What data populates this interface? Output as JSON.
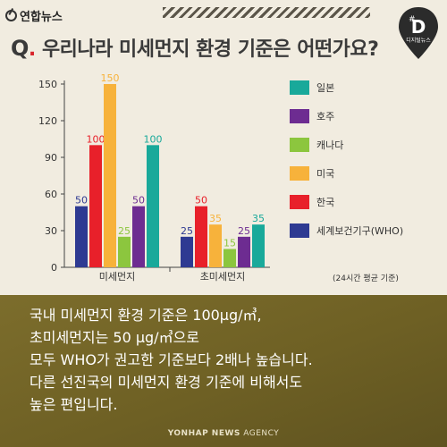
{
  "brand": {
    "logo_text": "연합뉴스",
    "badge_letter": "D",
    "badge_sub": "디지털뉴스"
  },
  "question": {
    "prefix": "Q",
    "dot": ".",
    "text": "우리나라 미세먼지 환경 기준은 어떤가요?"
  },
  "chart_data": {
    "type": "bar",
    "title": "우리나라 미세먼지 환경 기준은 어떤가요?",
    "categories": [
      "미세먼지",
      "초미세먼지"
    ],
    "series": [
      {
        "name": "세계보건기구(WHO)",
        "color": "#2e3a92",
        "values": [
          50,
          25
        ]
      },
      {
        "name": "한국",
        "color": "#e8202a",
        "values": [
          100,
          50
        ]
      },
      {
        "name": "미국",
        "color": "#f7b23b",
        "values": [
          150,
          35
        ]
      },
      {
        "name": "캐나다",
        "color": "#8cc63e",
        "values": [
          25,
          15
        ]
      },
      {
        "name": "호주",
        "color": "#6d2c91",
        "values": [
          50,
          25
        ]
      },
      {
        "name": "일본",
        "color": "#19a99a",
        "values": [
          100,
          35
        ]
      }
    ],
    "legend_order": [
      "일본",
      "호주",
      "캐나다",
      "미국",
      "한국",
      "세계보건기구(WHO)"
    ],
    "yticks": [
      0,
      30,
      60,
      90,
      120,
      150
    ],
    "ylim": [
      0,
      150
    ],
    "legend_position": "right",
    "note": "(24시간 평균 기준)"
  },
  "message": {
    "lines": [
      "국내 미세먼지 환경 기준은 100μg/㎥,",
      "초미세먼지는 50 μg/㎥으로",
      "모두 WHO가 권고한 기준보다 2배나 높습니다.",
      "다른 선진국의 미세먼지 환경 기준에 비해서도",
      "높은 편입니다."
    ]
  },
  "footer": {
    "bold": "YONHAP NEWS",
    "rest": " AGENCY"
  }
}
